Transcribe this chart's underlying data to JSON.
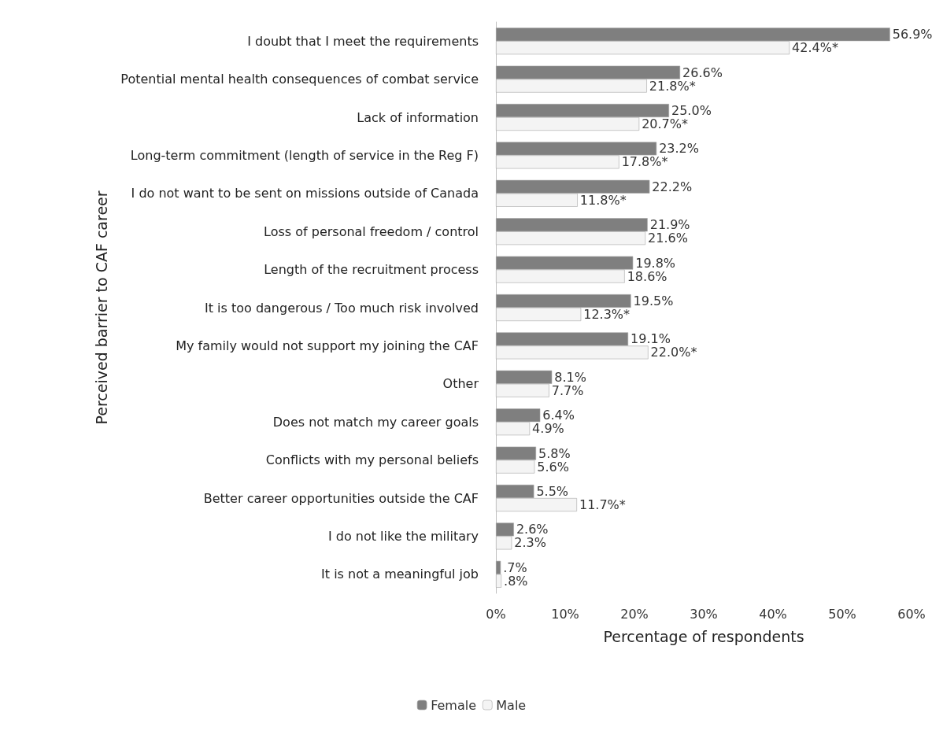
{
  "chart_data": {
    "type": "bar",
    "orientation": "horizontal",
    "xlabel": "Percentage of respondents",
    "ylabel": "Perceived barrier to CAF career",
    "categories": [
      "I doubt that I meet the requirements",
      "Potential mental health consequences of combat service",
      "Lack of information",
      "Long-term commitment (length of service in the Reg F)",
      "I do not want to be sent on missions outside of Canada",
      "Loss of personal freedom / control",
      "Length of the recruitment process",
      "It is too dangerous / Too much risk involved",
      "My family would not support my joining the CAF",
      "Other",
      "Does not match my career goals",
      "Conflicts with my personal beliefs",
      "Better career opportunities outside the CAF",
      "I do not like the military",
      "It is not a meaningful job"
    ],
    "series": [
      {
        "name": "Female",
        "color": "#7f7f7f",
        "values": [
          56.9,
          26.6,
          25.0,
          23.2,
          22.2,
          21.9,
          19.8,
          19.5,
          19.1,
          8.1,
          6.4,
          5.8,
          5.5,
          2.6,
          0.7
        ],
        "value_labels": [
          "56.9%",
          "26.6%",
          "25.0%",
          "23.2%",
          "22.2%",
          "21.9%",
          "19.8%",
          "19.5%",
          "19.1%",
          "8.1%",
          "6.4%",
          "5.8%",
          "5.5%",
          "2.6%",
          ".7%"
        ]
      },
      {
        "name": "Male",
        "color": "#f4f4f4",
        "values": [
          42.4,
          21.8,
          20.7,
          17.8,
          11.8,
          21.6,
          18.6,
          12.3,
          22.0,
          7.7,
          4.9,
          5.6,
          11.7,
          2.3,
          0.8
        ],
        "value_labels": [
          "42.4%*",
          "21.8%*",
          "20.7%*",
          "17.8%*",
          "11.8%*",
          "21.6%",
          "18.6%",
          "12.3%*",
          "22.0%*",
          "7.7%",
          "4.9%",
          "5.6%",
          "11.7%*",
          "2.3%",
          ".8%"
        ]
      }
    ],
    "xlim": [
      0,
      60
    ],
    "xticks": [
      {
        "value": 0,
        "label": "0%"
      },
      {
        "value": 10,
        "label": "10%"
      },
      {
        "value": 20,
        "label": "20%"
      },
      {
        "value": 30,
        "label": "30%"
      },
      {
        "value": 40,
        "label": "40%"
      },
      {
        "value": 50,
        "label": "50%"
      },
      {
        "value": 60,
        "label": "60%"
      }
    ],
    "grid": false,
    "legend": "bottom"
  }
}
